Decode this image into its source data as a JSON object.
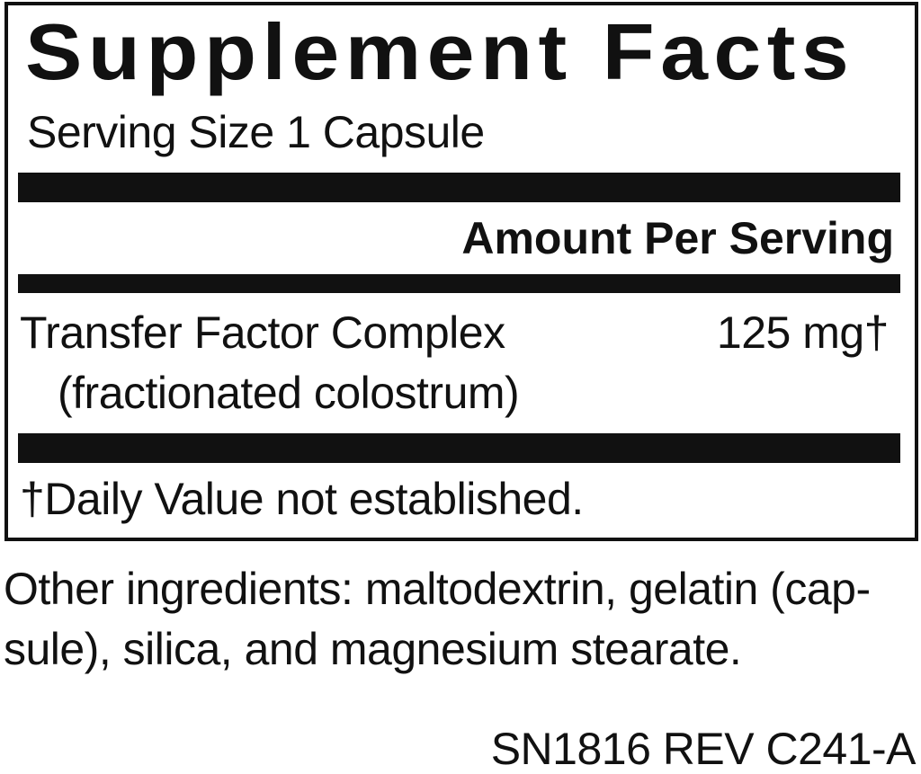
{
  "label": {
    "title": "Supplement Facts",
    "serving_size": "Serving Size 1 Capsule",
    "amount_header": "Amount Per Serving",
    "ingredients": [
      {
        "name": "Transfer Factor Complex",
        "detail": "(fractionated colostrum)",
        "amount": "125 mg†"
      }
    ],
    "footnote": "†Daily Value not established."
  },
  "other_ingredients": {
    "line1": "Other ingredients: maltodextrin, gelatin (cap-",
    "line2": "sule), silica, and magnesium stearate."
  },
  "code": "SN1816 REV C241-A"
}
